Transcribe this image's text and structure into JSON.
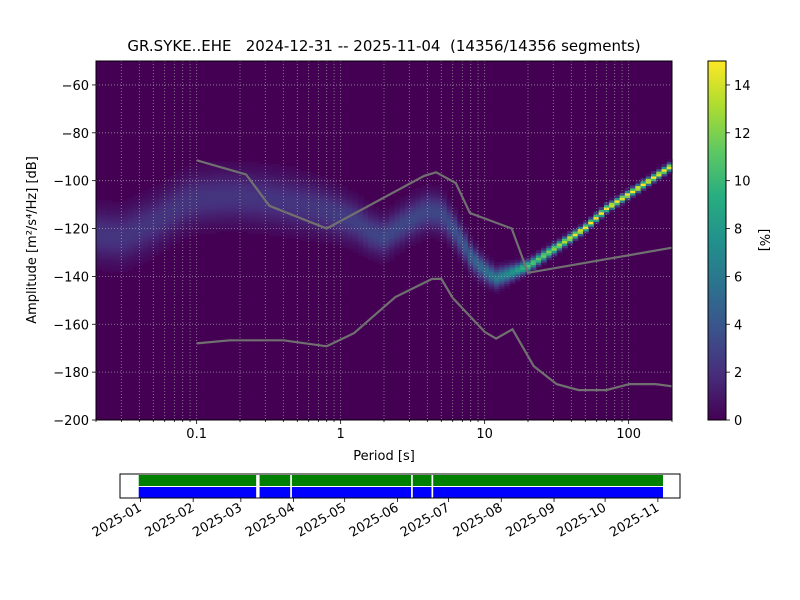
{
  "chart_data": [
    {
      "type": "heatmap",
      "title": "GR.SYKE..EHE   2024-12-31 -- 2025-11-04  (14356/14356 segments)",
      "xlabel": "Period [s]",
      "ylabel": "Amplitude [m²/s⁴/Hz] [dB]",
      "x_scale": "log",
      "xlim": [
        0.02,
        200
      ],
      "ylim": [
        -200,
        -50
      ],
      "x_ticks": [
        {
          "value": 0.1,
          "label": "0.1"
        },
        {
          "value": 1,
          "label": "1"
        },
        {
          "value": 10,
          "label": "10"
        },
        {
          "value": 100,
          "label": "100"
        }
      ],
      "y_ticks": [
        {
          "value": -60,
          "label": "−60"
        },
        {
          "value": -80,
          "label": "−80"
        },
        {
          "value": -100,
          "label": "−100"
        },
        {
          "value": -120,
          "label": "−120"
        },
        {
          "value": -140,
          "label": "−140"
        },
        {
          "value": -160,
          "label": "−160"
        },
        {
          "value": -180,
          "label": "−180"
        },
        {
          "value": -200,
          "label": "−200"
        }
      ],
      "grid": true,
      "colormap": "viridis",
      "colorbar": {
        "label": "[%]",
        "range": [
          0,
          15
        ],
        "ticks": [
          {
            "value": 0,
            "label": "0"
          },
          {
            "value": 2,
            "label": "2"
          },
          {
            "value": 4,
            "label": "4"
          },
          {
            "value": 6,
            "label": "6"
          },
          {
            "value": 8,
            "label": "8"
          },
          {
            "value": 10,
            "label": "10"
          },
          {
            "value": 12,
            "label": "12"
          },
          {
            "value": 14,
            "label": "14"
          }
        ]
      },
      "ppsd_mode_track": [
        [
          0.02,
          -123
        ],
        [
          0.03,
          -124
        ],
        [
          0.05,
          -118
        ],
        [
          0.08,
          -110
        ],
        [
          0.1,
          -108
        ],
        [
          0.15,
          -107
        ],
        [
          0.2,
          -107
        ],
        [
          0.3,
          -108
        ],
        [
          0.4,
          -109
        ],
        [
          0.6,
          -111
        ],
        [
          0.8,
          -113
        ],
        [
          1,
          -115
        ],
        [
          1.3,
          -118
        ],
        [
          1.6,
          -122
        ],
        [
          2,
          -124
        ],
        [
          2.5,
          -120
        ],
        [
          3,
          -117
        ],
        [
          4,
          -113
        ],
        [
          5,
          -114
        ],
        [
          6,
          -120
        ],
        [
          7,
          -126
        ],
        [
          8,
          -132
        ],
        [
          10,
          -138
        ],
        [
          12,
          -141
        ],
        [
          15,
          -139
        ],
        [
          20,
          -136
        ],
        [
          30,
          -129
        ],
        [
          50,
          -120
        ],
        [
          70,
          -112
        ],
        [
          100,
          -106
        ],
        [
          150,
          -99
        ],
        [
          200,
          -94
        ]
      ],
      "ppsd_spread_db": [
        [
          0.02,
          7
        ],
        [
          0.1,
          7
        ],
        [
          0.5,
          7
        ],
        [
          1,
          6
        ],
        [
          2,
          5
        ],
        [
          5,
          5
        ],
        [
          10,
          3
        ],
        [
          20,
          1.5
        ],
        [
          50,
          1
        ],
        [
          200,
          1
        ]
      ],
      "noise_model_lines": [
        {
          "points": [
            [
              0.1,
              -91.5
            ],
            [
              0.22,
              -97.4
            ],
            [
              0.32,
              -110.5
            ],
            [
              0.8,
              -120
            ],
            [
              3.8,
              -98
            ],
            [
              4.6,
              -96.5
            ],
            [
              6.3,
              -101
            ],
            [
              7.9,
              -113.5
            ],
            [
              15.4,
              -120
            ],
            [
              20,
              -138.5
            ],
            [
              200,
              -128
            ]
          ],
          "color": "#707070"
        },
        {
          "points": [
            [
              0.1,
              -168
            ],
            [
              0.17,
              -166.7
            ],
            [
              0.4,
              -166.7
            ],
            [
              0.8,
              -169.2
            ],
            [
              1.24,
              -163.7
            ],
            [
              2.4,
              -148.6
            ],
            [
              4.3,
              -141.1
            ],
            [
              5,
              -141
            ],
            [
              6,
              -149
            ],
            [
              10,
              -163.2
            ],
            [
              12,
              -166
            ],
            [
              15.6,
              -162.1
            ],
            [
              21.9,
              -177.5
            ],
            [
              31.6,
              -185
            ],
            [
              45,
              -187.5
            ],
            [
              70,
              -187.5
            ],
            [
              101,
              -185
            ],
            [
              154,
              -185
            ],
            [
              200,
              -185.9
            ]
          ],
          "color": "#707070"
        }
      ]
    },
    {
      "type": "timeline",
      "x_ticks": [
        {
          "date": "2025-01-01",
          "label": "2025-01"
        },
        {
          "date": "2025-02-01",
          "label": "2025-02"
        },
        {
          "date": "2025-03-01",
          "label": "2025-03"
        },
        {
          "date": "2025-04-01",
          "label": "2025-04"
        },
        {
          "date": "2025-05-01",
          "label": "2025-05"
        },
        {
          "date": "2025-06-01",
          "label": "2025-06"
        },
        {
          "date": "2025-07-01",
          "label": "2025-07"
        },
        {
          "date": "2025-08-01",
          "label": "2025-08"
        },
        {
          "date": "2025-09-01",
          "label": "2025-09"
        },
        {
          "date": "2025-10-01",
          "label": "2025-10"
        },
        {
          "date": "2025-11-01",
          "label": "2025-11"
        }
      ],
      "xlim": [
        "2024-12-20",
        "2025-11-14"
      ],
      "bars": [
        {
          "color": "#008000",
          "from": "2024-12-31",
          "to": "2025-11-04",
          "gaps": [
            [
              "2025-03-10",
              "2025-03-12"
            ],
            [
              "2025-03-30",
              "2025-03-31"
            ],
            [
              "2025-06-09",
              "2025-06-10"
            ],
            [
              "2025-06-21",
              "2025-06-22"
            ]
          ]
        },
        {
          "color": "#0000ff",
          "from": "2024-12-31",
          "to": "2025-11-04",
          "gaps": [
            [
              "2025-03-10",
              "2025-03-12"
            ],
            [
              "2025-03-30",
              "2025-03-31"
            ],
            [
              "2025-06-09",
              "2025-06-10"
            ],
            [
              "2025-06-21",
              "2025-06-22"
            ]
          ]
        }
      ]
    }
  ]
}
